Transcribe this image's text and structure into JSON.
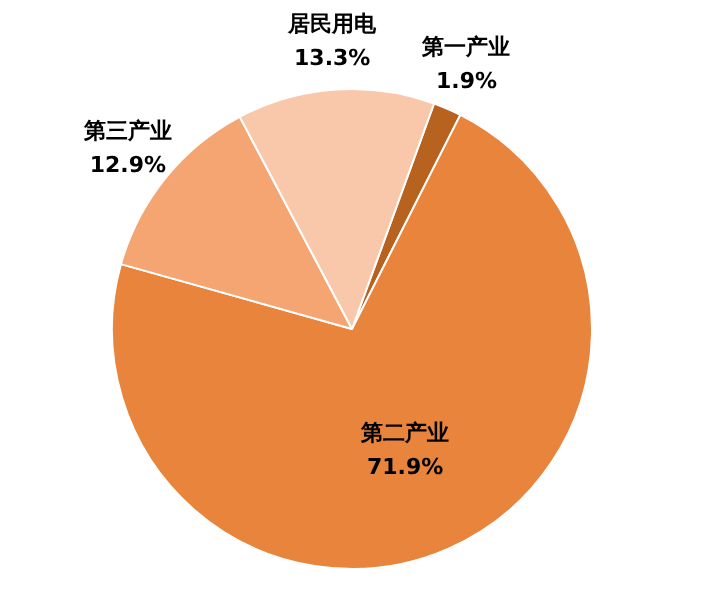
{
  "chart_data": {
    "type": "pie",
    "categories": [
      "第一产业",
      "第二产业",
      "第三产业",
      "居民用电"
    ],
    "values": [
      1.9,
      71.9,
      12.9,
      13.3
    ],
    "value_labels": [
      "1.9%",
      "71.9%",
      "12.9%",
      "13.3%"
    ],
    "colors": [
      "#b8621f",
      "#e8843c",
      "#f5a571",
      "#f9c8aa"
    ],
    "legend": false
  }
}
